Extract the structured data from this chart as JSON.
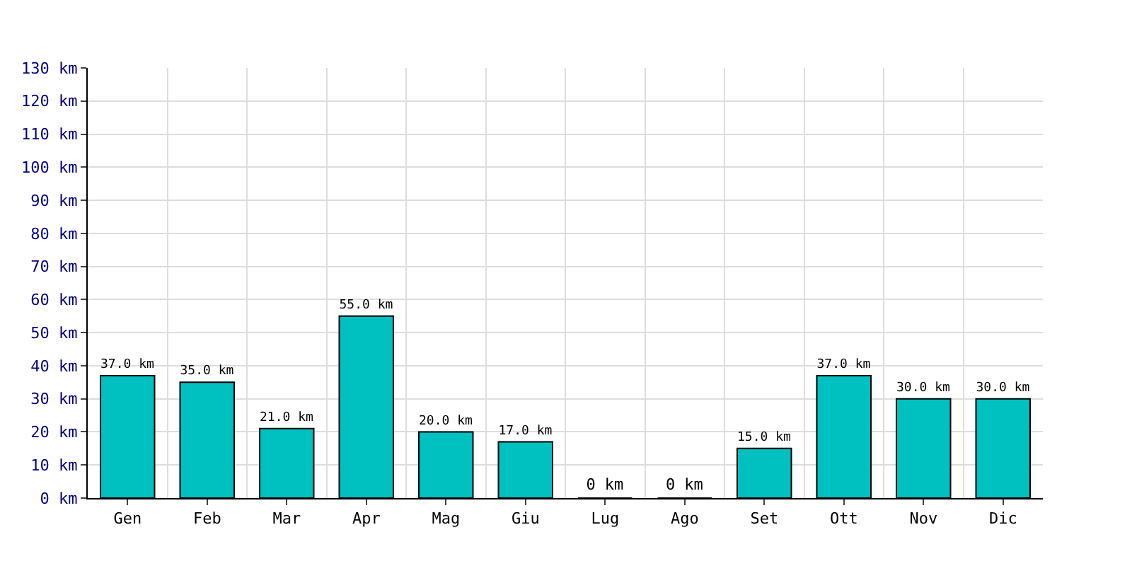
{
  "chart_data": {
    "type": "bar",
    "categories": [
      "Gen",
      "Feb",
      "Mar",
      "Apr",
      "Mag",
      "Giu",
      "Lug",
      "Ago",
      "Set",
      "Ott",
      "Nov",
      "Dic"
    ],
    "values": [
      37,
      35,
      21,
      55,
      20,
      17,
      0,
      0,
      15,
      37,
      30,
      30
    ],
    "value_labels": [
      "37.0 km",
      "35.0 km",
      "21.0 km",
      "55.0 km",
      "20.0 km",
      "17.0 km",
      "0 km",
      "0 km",
      "15.0 km",
      "37.0 km",
      "30.0 km",
      "30.0 km"
    ],
    "color": "#00c0c0",
    "ylim": [
      0,
      130
    ],
    "yticks": [
      {
        "value": 0,
        "label": "0 km"
      },
      {
        "value": 10,
        "label": "10 km"
      },
      {
        "value": 20,
        "label": "20 km"
      },
      {
        "value": 30,
        "label": "30 km"
      },
      {
        "value": 40,
        "label": "40 km"
      },
      {
        "value": 50,
        "label": "50 km"
      },
      {
        "value": 60,
        "label": "60 km"
      },
      {
        "value": 70,
        "label": "70 km"
      },
      {
        "value": 80,
        "label": "80 km"
      },
      {
        "value": 90,
        "label": "90 km"
      },
      {
        "value": 100,
        "label": "100 km"
      },
      {
        "value": 110,
        "label": "110 km"
      },
      {
        "value": 120,
        "label": "120 km"
      },
      {
        "value": 130,
        "label": "130 km"
      }
    ],
    "grid": true
  }
}
